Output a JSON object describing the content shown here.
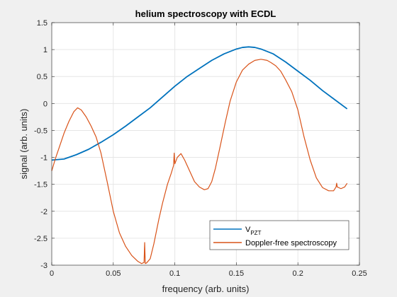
{
  "chart_data": {
    "type": "line",
    "title": "helium spectroscopy with ECDL",
    "xlabel": "frequency (arb. units)",
    "ylabel": "signal (arb. units)",
    "xlim": [
      0,
      0.25
    ],
    "ylim": [
      -3,
      1.5
    ],
    "x_ticks": [
      0,
      0.05,
      0.1,
      0.15,
      0.2,
      0.25
    ],
    "x_tick_labels": [
      "0",
      "0.05",
      "0.1",
      "0.15",
      "0.2",
      "0.25"
    ],
    "y_ticks": [
      -3,
      -2.5,
      -2,
      -1.5,
      -1,
      -0.5,
      0,
      0.5,
      1,
      1.5
    ],
    "y_tick_labels": [
      "-3",
      "-2.5",
      "-2",
      "-1.5",
      "-1",
      "-0.5",
      "0",
      "0.5",
      "1",
      "1.5"
    ],
    "grid": true,
    "legend_position": "bottom-right",
    "series": [
      {
        "name": "V",
        "name_subscript": "PZT",
        "color": "#0072BD",
        "x": [
          0,
          0.005,
          0.01,
          0.02,
          0.03,
          0.04,
          0.05,
          0.06,
          0.07,
          0.08,
          0.09,
          0.1,
          0.11,
          0.12,
          0.13,
          0.14,
          0.15,
          0.155,
          0.16,
          0.165,
          0.17,
          0.18,
          0.19,
          0.2,
          0.21,
          0.22,
          0.23,
          0.24
        ],
        "y": [
          -1.05,
          -1.04,
          -1.03,
          -0.95,
          -0.85,
          -0.72,
          -0.58,
          -0.42,
          -0.25,
          -0.08,
          0.12,
          0.32,
          0.5,
          0.65,
          0.8,
          0.92,
          1.01,
          1.04,
          1.05,
          1.04,
          1.01,
          0.92,
          0.77,
          0.6,
          0.43,
          0.24,
          0.07,
          -0.1
        ]
      },
      {
        "name": "Doppler-free spectroscopy",
        "color": "#D95319",
        "x": [
          0,
          0.003,
          0.006,
          0.01,
          0.014,
          0.018,
          0.021,
          0.024,
          0.028,
          0.032,
          0.036,
          0.04,
          0.045,
          0.05,
          0.055,
          0.06,
          0.065,
          0.07,
          0.073,
          0.075,
          0.0755,
          0.076,
          0.077,
          0.08,
          0.083,
          0.087,
          0.09,
          0.094,
          0.097,
          0.099,
          0.0995,
          0.1,
          0.102,
          0.105,
          0.108,
          0.112,
          0.116,
          0.12,
          0.124,
          0.127,
          0.13,
          0.133,
          0.137,
          0.141,
          0.145,
          0.15,
          0.155,
          0.16,
          0.165,
          0.17,
          0.175,
          0.178,
          0.182,
          0.186,
          0.19,
          0.195,
          0.2,
          0.205,
          0.21,
          0.215,
          0.22,
          0.225,
          0.229,
          0.231,
          0.2315,
          0.232,
          0.235,
          0.238,
          0.24
        ],
        "y": [
          -1.25,
          -1.02,
          -0.82,
          -0.55,
          -0.33,
          -0.15,
          -0.08,
          -0.12,
          -0.25,
          -0.42,
          -0.62,
          -0.92,
          -1.45,
          -2.0,
          -2.4,
          -2.65,
          -2.82,
          -2.93,
          -2.97,
          -2.95,
          -2.58,
          -2.97,
          -2.96,
          -2.88,
          -2.6,
          -2.15,
          -1.85,
          -1.5,
          -1.3,
          -1.15,
          -0.92,
          -1.12,
          -1.0,
          -0.93,
          -1.05,
          -1.25,
          -1.45,
          -1.55,
          -1.6,
          -1.58,
          -1.45,
          -1.2,
          -0.78,
          -0.35,
          0.05,
          0.4,
          0.62,
          0.73,
          0.8,
          0.82,
          0.8,
          0.76,
          0.7,
          0.6,
          0.44,
          0.22,
          -0.12,
          -0.62,
          -1.05,
          -1.38,
          -1.56,
          -1.62,
          -1.62,
          -1.55,
          -1.48,
          -1.55,
          -1.58,
          -1.55,
          -1.48
        ]
      }
    ]
  }
}
